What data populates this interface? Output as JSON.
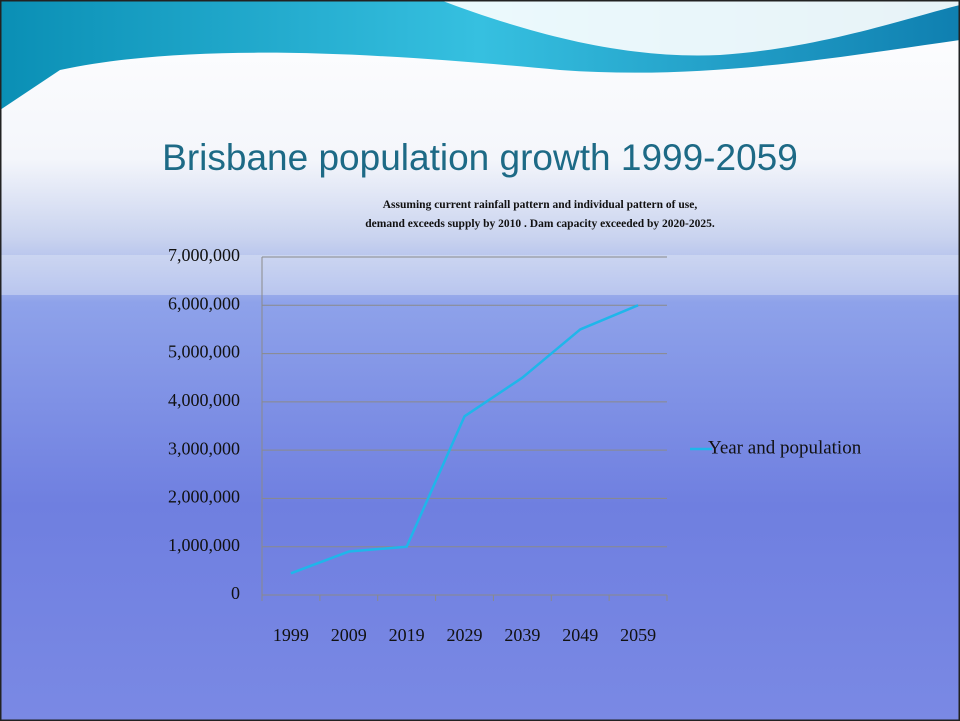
{
  "chart_data": {
    "type": "line",
    "title": "Brisbane population growth 1999-2059",
    "subtitle": [
      "Assuming current rainfall pattern and individual pattern of use,",
      "demand exceeds supply by 2010 .  Dam capacity exceeded by 2020-2025."
    ],
    "categories": [
      "1999",
      "2009",
      "2019",
      "2029",
      "2039",
      "2049",
      "2059"
    ],
    "series": [
      {
        "name": "Year and population",
        "color": "#1fb6ea",
        "values": [
          450000,
          900000,
          1000000,
          3700000,
          4500000,
          5500000,
          6000000
        ]
      }
    ],
    "ylim": [
      0,
      7000000
    ],
    "yticks": [
      0,
      {
        "value": 1000000,
        "label": "1,000,000"
      },
      {
        "value": 2000000,
        "label": "2,000,000"
      },
      {
        "value": 3000000,
        "label": "3,000,000"
      },
      {
        "value": 4000000,
        "label": "4,000,000"
      },
      {
        "value": 5000000,
        "label": "5,000,000"
      },
      {
        "value": 6000000,
        "label": "6,000,000"
      },
      {
        "value": 7000000,
        "label": "7,000,000"
      }
    ],
    "grid": true,
    "legend": "right"
  }
}
